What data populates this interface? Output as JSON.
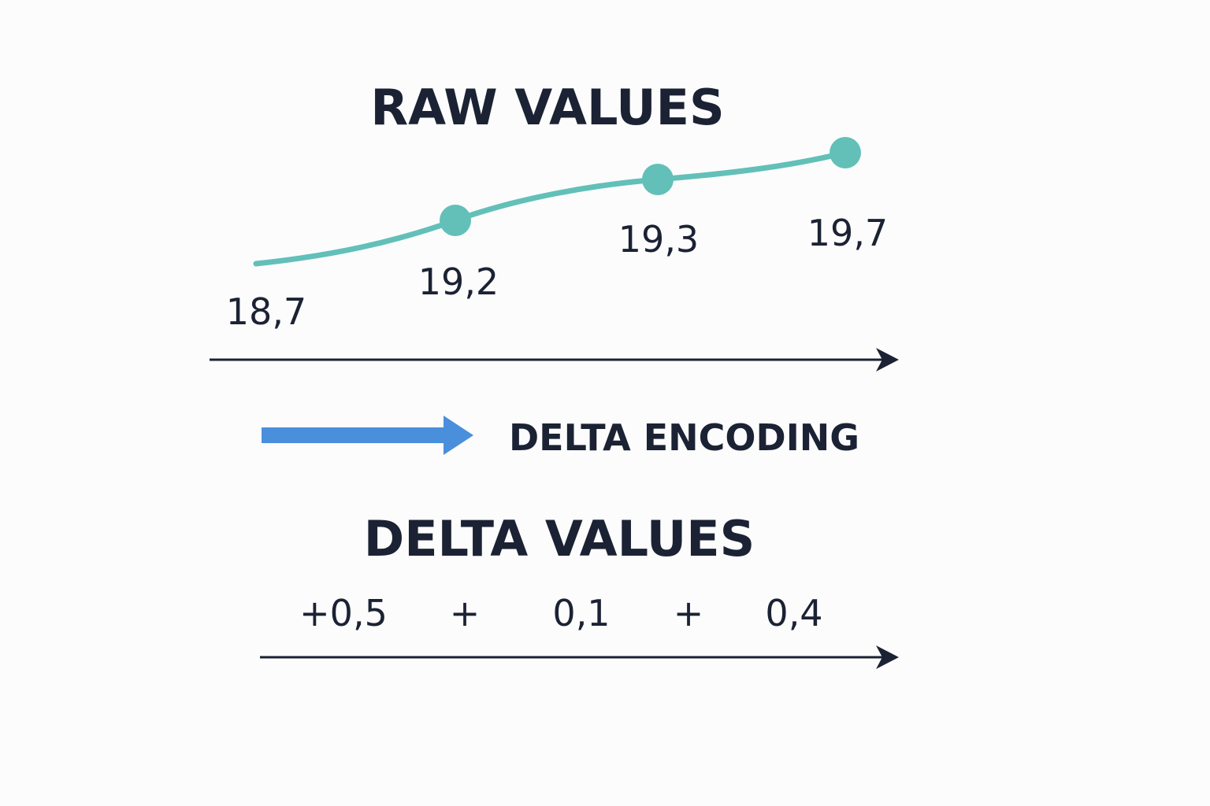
{
  "raw_section": {
    "title": "RAW VALUES",
    "points": [
      {
        "label": "18,7",
        "value": 18.7,
        "marker": false
      },
      {
        "label": "19,2",
        "value": 19.2,
        "marker": true
      },
      {
        "label": "19,3",
        "value": 19.3,
        "marker": true
      },
      {
        "label": "19,7",
        "value": 19.7,
        "marker": true
      }
    ],
    "line_color": "#62c0b8"
  },
  "encoding_step": {
    "label": "DELTA ENCODING",
    "arrow_color": "#4a8fdc"
  },
  "delta_section": {
    "title": "DELTA VALUES",
    "tokens": [
      "+0,5",
      "+",
      "0,1",
      "+",
      "0,4"
    ]
  },
  "axis_color": "#1b2233"
}
